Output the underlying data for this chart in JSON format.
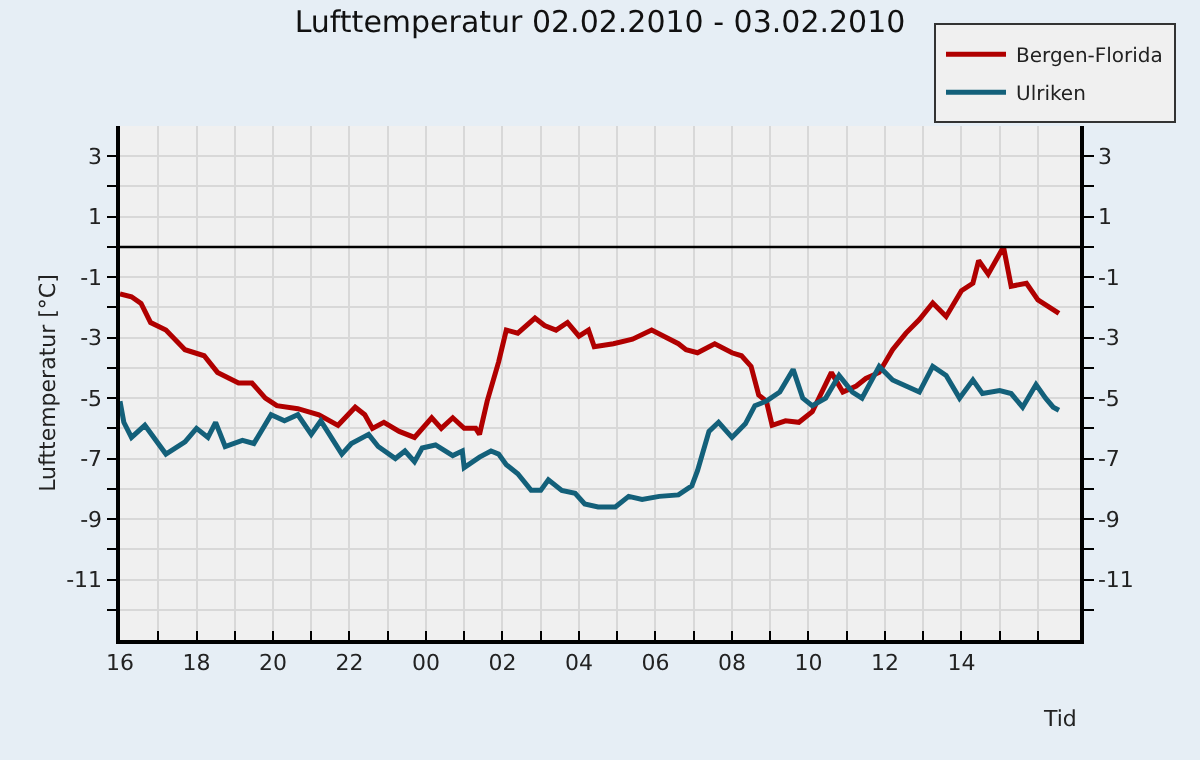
{
  "chart_data": {
    "type": "line",
    "title": "Lufttemperatur 02.02.2010 - 03.02.2010",
    "xlabel": "Tid",
    "ylabel": "Lufttemperatur [°C]",
    "xlim": [
      "2010-02-02T16:00",
      "2010-02-03T17:06"
    ],
    "ylim": [
      -13,
      4
    ],
    "y2lim": [
      -13,
      4
    ],
    "xticks": [
      {
        "value": "2010-02-02T16:00",
        "label": "16"
      },
      {
        "value": "2010-02-02T17:00",
        "label": null
      },
      {
        "value": "2010-02-02T18:00",
        "label": "18"
      },
      {
        "value": "2010-02-02T19:00",
        "label": null
      },
      {
        "value": "2010-02-02T20:00",
        "label": "20"
      },
      {
        "value": "2010-02-02T21:00",
        "label": null
      },
      {
        "value": "2010-02-02T22:00",
        "label": "22"
      },
      {
        "value": "2010-02-02T23:00",
        "label": null
      },
      {
        "value": "2010-02-03T00:00",
        "label": "00"
      },
      {
        "value": "2010-02-03T01:00",
        "label": null
      },
      {
        "value": "2010-02-03T02:00",
        "label": "02"
      },
      {
        "value": "2010-02-03T03:00",
        "label": null
      },
      {
        "value": "2010-02-03T04:00",
        "label": "04"
      },
      {
        "value": "2010-02-03T05:00",
        "label": null
      },
      {
        "value": "2010-02-03T06:00",
        "label": "06"
      },
      {
        "value": "2010-02-03T07:00",
        "label": null
      },
      {
        "value": "2010-02-03T08:00",
        "label": "08"
      },
      {
        "value": "2010-02-03T09:00",
        "label": null
      },
      {
        "value": "2010-02-03T10:00",
        "label": "10"
      },
      {
        "value": "2010-02-03T11:00",
        "label": null
      },
      {
        "value": "2010-02-03T12:00",
        "label": "12"
      },
      {
        "value": "2010-02-03T13:00",
        "label": null
      },
      {
        "value": "2010-02-03T14:00",
        "label": "14"
      },
      {
        "value": "2010-02-03T15:00",
        "label": null
      },
      {
        "value": "2010-02-03T16:00",
        "label": null
      }
    ],
    "yticks": [
      {
        "value": -12,
        "label": null
      },
      -11,
      {
        "value": -10,
        "label": null
      },
      -9,
      {
        "value": -8,
        "label": null
      },
      -7,
      {
        "value": -6,
        "label": null
      },
      -5,
      {
        "value": -4,
        "label": null
      },
      -3,
      {
        "value": -2,
        "label": null
      },
      -1,
      {
        "value": 0,
        "label": null
      },
      1,
      {
        "value": 2,
        "label": null
      },
      3
    ],
    "y2ticks": [
      {
        "value": -12,
        "label": null
      },
      -11,
      {
        "value": -10,
        "label": null
      },
      -9,
      {
        "value": -8,
        "label": null
      },
      -7,
      {
        "value": -6,
        "label": null
      },
      -5,
      {
        "value": -4,
        "label": null
      },
      -3,
      {
        "value": -2,
        "label": null
      },
      -1,
      {
        "value": 0,
        "label": null
      },
      1,
      {
        "value": 2,
        "label": null
      },
      3
    ],
    "grid": true,
    "legend": "top right",
    "line_style": "solid",
    "marker": "none",
    "ref_lines": [
      {
        "axis": "y",
        "value": 0,
        "color": "#000000"
      }
    ],
    "series": [
      {
        "name": "Bergen-Florida",
        "color": "#b00000",
        "x": [
          "2010-02-02T16:00",
          "2010-02-02T16:18",
          "2010-02-02T16:33",
          "2010-02-02T16:48",
          "2010-02-02T17:12",
          "2010-02-02T17:42",
          "2010-02-02T18:12",
          "2010-02-02T18:33",
          "2010-02-02T19:06",
          "2010-02-02T19:27",
          "2010-02-02T19:48",
          "2010-02-02T20:06",
          "2010-02-02T20:39",
          "2010-02-02T21:12",
          "2010-02-02T21:42",
          "2010-02-02T22:09",
          "2010-02-02T22:24",
          "2010-02-02T22:36",
          "2010-02-02T22:54",
          "2010-02-02T23:18",
          "2010-02-02T23:42",
          "2010-02-03T00:09",
          "2010-02-03T00:24",
          "2010-02-03T00:42",
          "2010-02-03T01:00",
          "2010-02-03T01:18",
          "2010-02-03T01:24",
          "2010-02-03T01:36",
          "2010-02-03T01:54",
          "2010-02-03T02:06",
          "2010-02-03T02:24",
          "2010-02-03T02:51",
          "2010-02-03T03:06",
          "2010-02-03T03:24",
          "2010-02-03T03:42",
          "2010-02-03T04:00",
          "2010-02-03T04:15",
          "2010-02-03T04:24",
          "2010-02-03T04:54",
          "2010-02-03T05:24",
          "2010-02-03T05:54",
          "2010-02-03T06:36",
          "2010-02-03T06:48",
          "2010-02-03T07:06",
          "2010-02-03T07:33",
          "2010-02-03T08:00",
          "2010-02-03T08:15",
          "2010-02-03T08:30",
          "2010-02-03T08:42",
          "2010-02-03T08:54",
          "2010-02-03T09:03",
          "2010-02-03T09:24",
          "2010-02-03T09:45",
          "2010-02-03T10:06",
          "2010-02-03T10:36",
          "2010-02-03T10:54",
          "2010-02-03T11:15",
          "2010-02-03T11:30",
          "2010-02-03T11:51",
          "2010-02-03T12:12",
          "2010-02-03T12:33",
          "2010-02-03T12:54",
          "2010-02-03T13:15",
          "2010-02-03T13:36",
          "2010-02-03T14:00",
          "2010-02-03T14:18",
          "2010-02-03T14:27",
          "2010-02-03T14:42",
          "2010-02-03T15:06",
          "2010-02-03T15:18",
          "2010-02-03T15:42",
          "2010-02-03T16:00",
          "2010-02-03T16:33"
        ],
        "values": [
          -1.55,
          -1.65,
          -1.87,
          -2.5,
          -2.75,
          -3.4,
          -3.6,
          -4.15,
          -4.5,
          -4.5,
          -5.0,
          -5.25,
          -5.35,
          -5.55,
          -5.9,
          -5.3,
          -5.55,
          -6.0,
          -5.8,
          -6.1,
          -6.3,
          -5.65,
          -6.0,
          -5.65,
          -6.0,
          -6.0,
          -6.2,
          -5.1,
          -3.8,
          -2.75,
          -2.85,
          -2.35,
          -2.6,
          -2.75,
          -2.5,
          -2.95,
          -2.75,
          -3.3,
          -3.2,
          -3.05,
          -2.75,
          -3.2,
          -3.4,
          -3.5,
          -3.2,
          -3.5,
          -3.6,
          -3.95,
          -4.9,
          -5.1,
          -5.9,
          -5.75,
          -5.8,
          -5.45,
          -4.15,
          -4.8,
          -4.6,
          -4.35,
          -4.15,
          -3.4,
          -2.85,
          -2.4,
          -1.85,
          -2.3,
          -1.45,
          -1.2,
          -0.45,
          -0.9,
          0.0,
          -1.3,
          -1.2,
          -1.75,
          -2.2
        ]
      },
      {
        "name": "Ulriken",
        "color": "#13607a",
        "x": [
          "2010-02-02T16:00",
          "2010-02-02T16:06",
          "2010-02-02T16:18",
          "2010-02-02T16:39",
          "2010-02-02T17:12",
          "2010-02-02T17:42",
          "2010-02-02T18:00",
          "2010-02-02T18:18",
          "2010-02-02T18:30",
          "2010-02-02T18:45",
          "2010-02-02T19:12",
          "2010-02-02T19:30",
          "2010-02-02T19:57",
          "2010-02-02T20:18",
          "2010-02-02T20:39",
          "2010-02-02T21:00",
          "2010-02-02T21:15",
          "2010-02-02T21:48",
          "2010-02-02T22:03",
          "2010-02-02T22:30",
          "2010-02-02T22:45",
          "2010-02-02T23:12",
          "2010-02-02T23:27",
          "2010-02-02T23:42",
          "2010-02-02T23:54",
          "2010-02-03T00:15",
          "2010-02-03T00:42",
          "2010-02-03T00:57",
          "2010-02-03T01:00",
          "2010-02-03T01:24",
          "2010-02-03T01:42",
          "2010-02-03T01:54",
          "2010-02-03T02:06",
          "2010-02-03T02:24",
          "2010-02-03T02:45",
          "2010-02-03T03:00",
          "2010-02-03T03:12",
          "2010-02-03T03:33",
          "2010-02-03T03:54",
          "2010-02-03T04:09",
          "2010-02-03T04:30",
          "2010-02-03T04:57",
          "2010-02-03T05:18",
          "2010-02-03T05:39",
          "2010-02-03T06:06",
          "2010-02-03T06:36",
          "2010-02-03T06:57",
          "2010-02-03T07:06",
          "2010-02-03T07:24",
          "2010-02-03T07:39",
          "2010-02-03T08:00",
          "2010-02-03T08:21",
          "2010-02-03T08:36",
          "2010-02-03T08:54",
          "2010-02-03T09:15",
          "2010-02-03T09:36",
          "2010-02-03T09:51",
          "2010-02-03T10:06",
          "2010-02-03T10:27",
          "2010-02-03T10:48",
          "2010-02-03T11:09",
          "2010-02-03T11:24",
          "2010-02-03T11:51",
          "2010-02-03T12:12",
          "2010-02-03T12:33",
          "2010-02-03T12:54",
          "2010-02-03T13:15",
          "2010-02-03T13:36",
          "2010-02-03T13:57",
          "2010-02-03T14:18",
          "2010-02-03T14:33",
          "2010-02-03T15:00",
          "2010-02-03T15:18",
          "2010-02-03T15:36",
          "2010-02-03T15:57",
          "2010-02-03T16:12",
          "2010-02-03T16:24",
          "2010-02-03T16:33"
        ],
        "values": [
          -5.1,
          -5.8,
          -6.3,
          -5.9,
          -6.85,
          -6.45,
          -6.0,
          -6.3,
          -5.8,
          -6.6,
          -6.4,
          -6.5,
          -5.55,
          -5.75,
          -5.55,
          -6.2,
          -5.75,
          -6.85,
          -6.5,
          -6.2,
          -6.6,
          -7.0,
          -6.75,
          -7.1,
          -6.65,
          -6.55,
          -6.9,
          -6.75,
          -7.3,
          -6.95,
          -6.75,
          -6.85,
          -7.2,
          -7.5,
          -8.05,
          -8.05,
          -7.7,
          -8.05,
          -8.15,
          -8.5,
          -8.6,
          -8.6,
          -8.25,
          -8.35,
          -8.25,
          -8.2,
          -7.9,
          -7.4,
          -6.1,
          -5.8,
          -6.3,
          -5.85,
          -5.25,
          -5.1,
          -4.8,
          -4.05,
          -5.0,
          -5.25,
          -5.0,
          -4.25,
          -4.8,
          -5.0,
          -3.95,
          -4.4,
          -4.6,
          -4.8,
          -3.95,
          -4.25,
          -5.0,
          -4.4,
          -4.85,
          -4.75,
          -4.85,
          -5.3,
          -4.55,
          -5.0,
          -5.3,
          -5.4
        ]
      }
    ]
  }
}
